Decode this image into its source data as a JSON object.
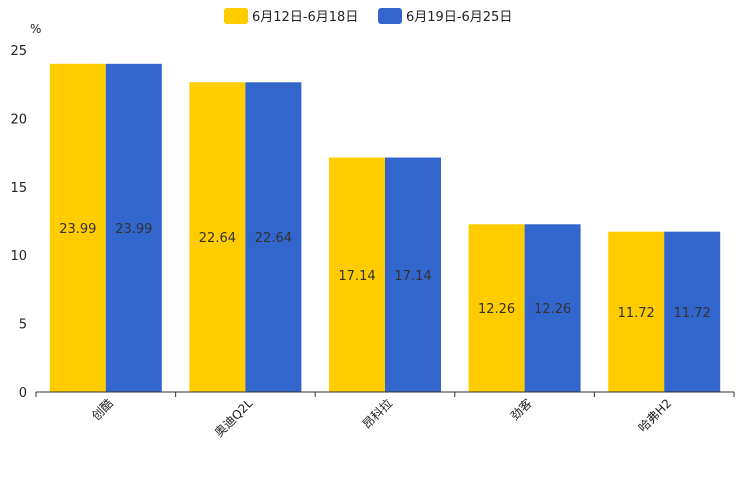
{
  "chart_data": {
    "type": "bar",
    "title": "",
    "xlabel": "",
    "ylabel": "%",
    "ylim": [
      0,
      25
    ],
    "yticks": [
      0,
      5,
      10,
      15,
      20,
      25
    ],
    "legend_position": "top-center",
    "grid": false,
    "categories": [
      "创酷",
      "奥迪Q2L",
      "昂科拉",
      "劲客",
      "哈弗H2"
    ],
    "series": [
      {
        "name": "6月12日-6月18日",
        "color": "#FFCC00",
        "values": [
          23.99,
          22.64,
          17.14,
          12.26,
          11.72
        ],
        "labels": [
          "23.99",
          "22.64",
          "17.14",
          "12.26",
          "11.72"
        ]
      },
      {
        "name": "6月19日-6月25日",
        "color": "#3366CC",
        "values": [
          23.99,
          22.64,
          17.14,
          12.26,
          11.72
        ],
        "labels": [
          "23.99",
          "22.64",
          "17.14",
          "12.26",
          "11.72"
        ]
      }
    ]
  }
}
